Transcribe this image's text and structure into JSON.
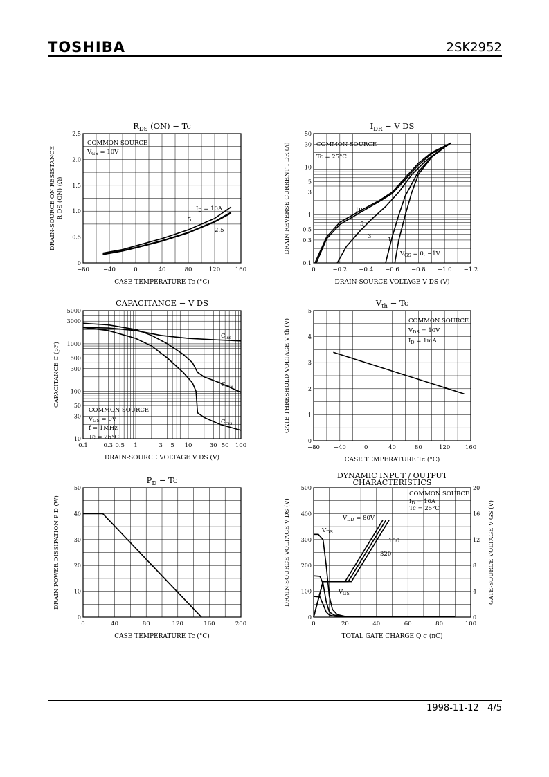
{
  "header": {
    "brand": "TOSHIBA",
    "part_number": "2SK2952"
  },
  "footer": {
    "date": "1998-11-12",
    "page": "4/5"
  },
  "chart_data": [
    {
      "id": "rds",
      "type": "line",
      "title_main": "R",
      "title_sub": "DS",
      "title_rest": " (ON)  −  Tc",
      "ylabel_lines": [
        "DRAIN-SOURCE ON RESISTANCE",
        "R DS (ON)   (Ω)"
      ],
      "xlabel": "CASE TEMPERATURE    Tc    (°C)",
      "xlim": [
        -80,
        160
      ],
      "ylim": [
        0,
        2.5
      ],
      "x_ticks": [
        -80,
        -40,
        0,
        40,
        80,
        120,
        160
      ],
      "y_ticks": [
        0,
        0.5,
        1.0,
        1.5,
        2.0,
        2.5
      ],
      "x_tick_labels": [
        "−80",
        "−40",
        "0",
        "40",
        "80",
        "120",
        "160"
      ],
      "y_tick_labels": [
        "0",
        "0.5",
        "1.0",
        "1.5",
        "2.0",
        "2.5"
      ],
      "annotations": [
        "COMMON SOURCE",
        "V GS = 10V",
        "I D = 10A",
        "5",
        "2.5"
      ],
      "series": [
        {
          "name": "ID=10A",
          "x": [
            -50,
            -20,
            0,
            40,
            80,
            120,
            145
          ],
          "y": [
            0.19,
            0.26,
            0.33,
            0.47,
            0.64,
            0.86,
            1.08
          ]
        },
        {
          "name": "5",
          "x": [
            -50,
            -20,
            0,
            40,
            80,
            120,
            145
          ],
          "y": [
            0.17,
            0.24,
            0.3,
            0.43,
            0.59,
            0.8,
            0.98
          ]
        },
        {
          "name": "2.5",
          "x": [
            -50,
            -20,
            0,
            40,
            80,
            120,
            145
          ],
          "y": [
            0.16,
            0.23,
            0.29,
            0.42,
            0.58,
            0.79,
            0.96
          ]
        }
      ]
    },
    {
      "id": "idr",
      "type": "line",
      "title_main": "I",
      "title_sub": "DR",
      "title_rest": "  −  V DS",
      "ylabel_lines": [
        "DRAIN REVERSE CURRENT    I DR    (A)"
      ],
      "xlabel": "DRAIN-SOURCE VOLTAGE    V DS    (V)",
      "xlim": [
        0,
        -1.2
      ],
      "ylim": [
        0.1,
        50
      ],
      "yscale": "log",
      "x_ticks": [
        0,
        -0.2,
        -0.4,
        -0.6,
        -0.8,
        -1.0,
        -1.2
      ],
      "y_ticks": [
        0.1,
        0.3,
        0.5,
        1,
        3,
        5,
        10,
        30,
        50
      ],
      "x_tick_labels": [
        "0",
        "−0.2",
        "−0.4",
        "−0.6",
        "−0.8",
        "−1.0",
        "−1.2"
      ],
      "y_tick_labels": [
        "0.1",
        "0.3",
        "0.5",
        "1",
        "3",
        "5",
        "10",
        "30",
        "50"
      ],
      "annotations": [
        "COMMON SOURCE",
        "Tc = 25°C",
        "10",
        "5",
        "3",
        "1",
        "V GS = 0,  −1V"
      ],
      "series": [
        {
          "name": "10",
          "x": [
            -0.01,
            -0.1,
            -0.2,
            -0.35,
            -0.5,
            -0.6,
            -0.7,
            -0.8,
            -0.9,
            -1.05
          ],
          "y": [
            0.1,
            0.35,
            0.7,
            1.2,
            2.0,
            3.0,
            6.0,
            12,
            20,
            32
          ]
        },
        {
          "name": "5",
          "x": [
            -0.02,
            -0.1,
            -0.2,
            -0.35,
            -0.5,
            -0.6,
            -0.7,
            -0.8,
            -0.9,
            -1.05
          ],
          "y": [
            0.1,
            0.32,
            0.63,
            1.1,
            1.9,
            2.8,
            5.5,
            11,
            19,
            32
          ]
        },
        {
          "name": "3",
          "x": [
            -0.18,
            -0.25,
            -0.35,
            -0.45,
            -0.55,
            -0.65,
            -0.75,
            -0.85,
            -0.95,
            -1.05
          ],
          "y": [
            0.1,
            0.22,
            0.45,
            0.85,
            1.5,
            3.0,
            7.0,
            13,
            21,
            32
          ]
        },
        {
          "name": "1",
          "x": [
            -0.55,
            -0.6,
            -0.65,
            -0.7,
            -0.8,
            -0.9,
            -1.0,
            -1.05
          ],
          "y": [
            0.1,
            0.35,
            1.0,
            2.5,
            8.0,
            16,
            26,
            32
          ]
        },
        {
          "name": "VGS=0,-1V",
          "x": [
            -0.62,
            -0.65,
            -0.7,
            -0.75,
            -0.8,
            -0.9,
            -1.0,
            -1.05
          ],
          "y": [
            0.1,
            0.3,
            1.0,
            3.0,
            7.0,
            16,
            26,
            32
          ]
        }
      ]
    },
    {
      "id": "cap",
      "type": "line",
      "title_plain": "CAPACITANCE  −  V DS",
      "ylabel_lines": [
        "CAPACITANCE    C    (pF)"
      ],
      "xlabel": "DRAIN-SOURCE VOLTAGE    V DS    (V)",
      "xlim": [
        0.1,
        100
      ],
      "ylim": [
        10,
        5000
      ],
      "xscale": "log",
      "yscale": "log",
      "x_ticks": [
        0.1,
        0.3,
        0.5,
        1,
        3,
        5,
        10,
        30,
        50,
        100
      ],
      "y_ticks": [
        10,
        30,
        50,
        100,
        300,
        500,
        1000,
        3000,
        5000
      ],
      "x_tick_labels": [
        "0.1",
        "0.3",
        "0.5",
        "1",
        "3",
        "5",
        "10",
        "30",
        "50",
        "100"
      ],
      "y_tick_labels": [
        "10",
        "30",
        "50",
        "100",
        "300",
        "500",
        "1000",
        "3000",
        "5000"
      ],
      "annotations": [
        "COMMON SOURCE",
        "V GS = 0V",
        "f = 1MHz",
        "Tc = 25°C",
        "C iss",
        "C oss",
        "C rss"
      ],
      "series": [
        {
          "name": "Ciss",
          "x": [
            0.1,
            0.3,
            1,
            3,
            10,
            30,
            100
          ],
          "y": [
            2200,
            2150,
            1900,
            1500,
            1300,
            1220,
            1150
          ]
        },
        {
          "name": "Coss",
          "x": [
            0.1,
            0.3,
            1,
            2,
            4,
            8,
            12,
            15,
            20,
            40,
            100
          ],
          "y": [
            2700,
            2500,
            2000,
            1500,
            1000,
            600,
            400,
            250,
            200,
            150,
            95
          ]
        },
        {
          "name": "Crss",
          "x": [
            0.1,
            0.3,
            1,
            2,
            4,
            8,
            12,
            14,
            15,
            20,
            40,
            100
          ],
          "y": [
            2200,
            1900,
            1300,
            900,
            500,
            250,
            150,
            100,
            35,
            28,
            20,
            15
          ]
        }
      ]
    },
    {
      "id": "vth",
      "type": "line",
      "title_main": "V",
      "title_sub": "th",
      "title_rest": "  −  Tc",
      "ylabel_lines": [
        "GATE THRESHOLD VOLTAGE    V th    (V)"
      ],
      "xlabel": "CASE TEMPERATURE    Tc    (°C)",
      "xlim": [
        -80,
        160
      ],
      "ylim": [
        0,
        5
      ],
      "x_ticks": [
        -80,
        -40,
        0,
        40,
        80,
        120,
        160
      ],
      "y_ticks": [
        0,
        1,
        2,
        3,
        4,
        5
      ],
      "x_tick_labels": [
        "−80",
        "−40",
        "0",
        "40",
        "80",
        "120",
        "160"
      ],
      "y_tick_labels": [
        "0",
        "1",
        "2",
        "3",
        "4",
        "5"
      ],
      "annotations": [
        "COMMON SOURCE",
        "V DS = 10V",
        "I D = 1mA"
      ],
      "series": [
        {
          "name": "Vth",
          "x": [
            -50,
            150
          ],
          "y": [
            3.4,
            1.8
          ]
        }
      ]
    },
    {
      "id": "pd",
      "type": "line",
      "title_main": "P",
      "title_sub": "D",
      "title_rest": "  −  Tc",
      "ylabel_lines": [
        "DRAIN POWER DISSIPATION    P D    (W)"
      ],
      "xlabel": "CASE TEMPERATURE    Tc    (°C)",
      "xlim": [
        0,
        200
      ],
      "ylim": [
        0,
        50
      ],
      "x_ticks": [
        0,
        40,
        80,
        120,
        160,
        200
      ],
      "y_ticks": [
        0,
        10,
        20,
        30,
        40,
        50
      ],
      "x_tick_labels": [
        "0",
        "40",
        "80",
        "120",
        "160",
        "200"
      ],
      "y_tick_labels": [
        "0",
        "10",
        "20",
        "30",
        "40",
        "50"
      ],
      "annotations": [],
      "series": [
        {
          "name": "PD",
          "x": [
            0,
            25,
            150
          ],
          "y": [
            40,
            40,
            0
          ]
        }
      ]
    },
    {
      "id": "dyn",
      "type": "line",
      "title_lines": [
        "DYNAMIC INPUT / OUTPUT",
        "CHARACTERISTICS"
      ],
      "ylabel_lines": [
        "DRAIN-SOURCE VOLTAGE    V DS    (V)"
      ],
      "y2label": "GATE-SOURCE VOLTAGE    V GS    (V)",
      "xlabel": "TOTAL GATE CHARGE    Q g    (nC)",
      "xlim": [
        0,
        100
      ],
      "ylim": [
        0,
        500
      ],
      "y2lim": [
        0,
        20
      ],
      "x_ticks": [
        0,
        20,
        40,
        60,
        80,
        100
      ],
      "y_ticks": [
        0,
        100,
        200,
        300,
        400,
        500
      ],
      "y2_ticks": [
        0,
        4,
        8,
        12,
        16,
        20
      ],
      "x_tick_labels": [
        "0",
        "20",
        "40",
        "60",
        "80",
        "100"
      ],
      "y_tick_labels": [
        "0",
        "100",
        "200",
        "300",
        "400",
        "500"
      ],
      "y2_tick_labels": [
        "0",
        "4",
        "8",
        "12",
        "16",
        "20"
      ],
      "annotations": [
        "COMMON SOURCE",
        "I D = 10A",
        "Tc = 25°C",
        "V DD = 80V",
        "V DS",
        "160",
        "320",
        "V GS"
      ],
      "series": [
        {
          "name": "VDS 320",
          "axis": "left",
          "x": [
            0,
            3,
            6,
            8,
            10,
            12,
            15,
            20,
            90
          ],
          "y": [
            320,
            320,
            300,
            200,
            80,
            30,
            10,
            3,
            2
          ]
        },
        {
          "name": "VDS 160",
          "axis": "left",
          "x": [
            0,
            4,
            6,
            8,
            10,
            13,
            17,
            20,
            90
          ],
          "y": [
            160,
            158,
            130,
            60,
            20,
            8,
            4,
            3,
            2
          ]
        },
        {
          "name": "VDS 80",
          "axis": "left",
          "x": [
            0,
            4,
            6,
            8,
            10,
            13,
            16,
            90
          ],
          "y": [
            80,
            78,
            50,
            20,
            8,
            4,
            3,
            2
          ]
        },
        {
          "name": "VGS 80V",
          "axis": "right",
          "x": [
            0,
            6,
            20,
            44
          ],
          "y": [
            0,
            5.5,
            5.5,
            15
          ]
        },
        {
          "name": "VGS 160",
          "axis": "right",
          "x": [
            0,
            6,
            22,
            46
          ],
          "y": [
            0,
            5.5,
            5.5,
            15
          ]
        },
        {
          "name": "VGS 320",
          "axis": "right",
          "x": [
            0,
            6,
            24,
            48
          ],
          "y": [
            0,
            5.5,
            5.5,
            15
          ]
        }
      ]
    }
  ]
}
